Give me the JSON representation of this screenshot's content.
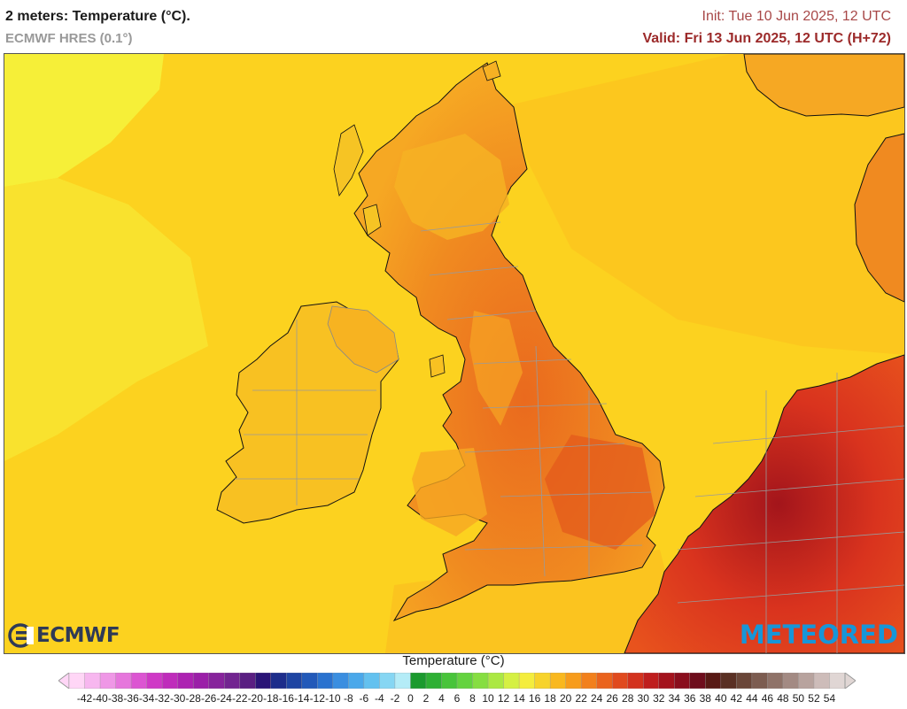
{
  "header": {
    "title": "2 meters: Temperature (°C).",
    "model": "ECMWF HRES (0.1°)",
    "init": "Init: Tue 10 Jun 2025, 12 UTC",
    "valid": "Valid: Fri 13 Jun 2025, 12 UTC (H+72)"
  },
  "logos": {
    "left": "ECMWF",
    "right": "METEORED"
  },
  "legend": {
    "title": "Temperature (°C)",
    "ticks": [
      "-42",
      "-40",
      "-38",
      "-36",
      "-34",
      "-32",
      "-30",
      "-28",
      "-26",
      "-24",
      "-22",
      "-20",
      "-18",
      "-16",
      "-14",
      "-12",
      "-10",
      "-8",
      "-6",
      "-4",
      "-2",
      "0",
      "2",
      "4",
      "6",
      "8",
      "10",
      "12",
      "14",
      "16",
      "18",
      "20",
      "22",
      "24",
      "26",
      "28",
      "30",
      "32",
      "34",
      "36",
      "38",
      "40",
      "42",
      "44",
      "46",
      "48",
      "50",
      "52",
      "54"
    ],
    "colors": [
      "#ffd6f6",
      "#f7b7ef",
      "#ef97e6",
      "#e676dc",
      "#dc55d2",
      "#cf39c6",
      "#bf2cbb",
      "#ad22b2",
      "#9b1fa8",
      "#87239c",
      "#722490",
      "#5a1f82",
      "#2a1477",
      "#1d2d8b",
      "#1e44a2",
      "#2259b9",
      "#2a72cf",
      "#3a8ee0",
      "#4aa8ea",
      "#63c1ef",
      "#86d6f3",
      "#b4ecf7",
      "#1b9a2e",
      "#2eb034",
      "#48c43a",
      "#64d33f",
      "#86de41",
      "#abe843",
      "#d5f043",
      "#f4ed3d",
      "#f7d32b",
      "#f9b81f",
      "#f79c1c",
      "#f2801c",
      "#ea631d",
      "#e04a1e",
      "#d3321e",
      "#bf1e1e",
      "#a4131d",
      "#8a0e1d",
      "#6e0d1c",
      "#581914",
      "#5a3024",
      "#6a4638",
      "#7c5c50",
      "#8f7268",
      "#a38a83",
      "#b8a39e",
      "#cdbcb9",
      "#e0d6d4"
    ]
  }
}
